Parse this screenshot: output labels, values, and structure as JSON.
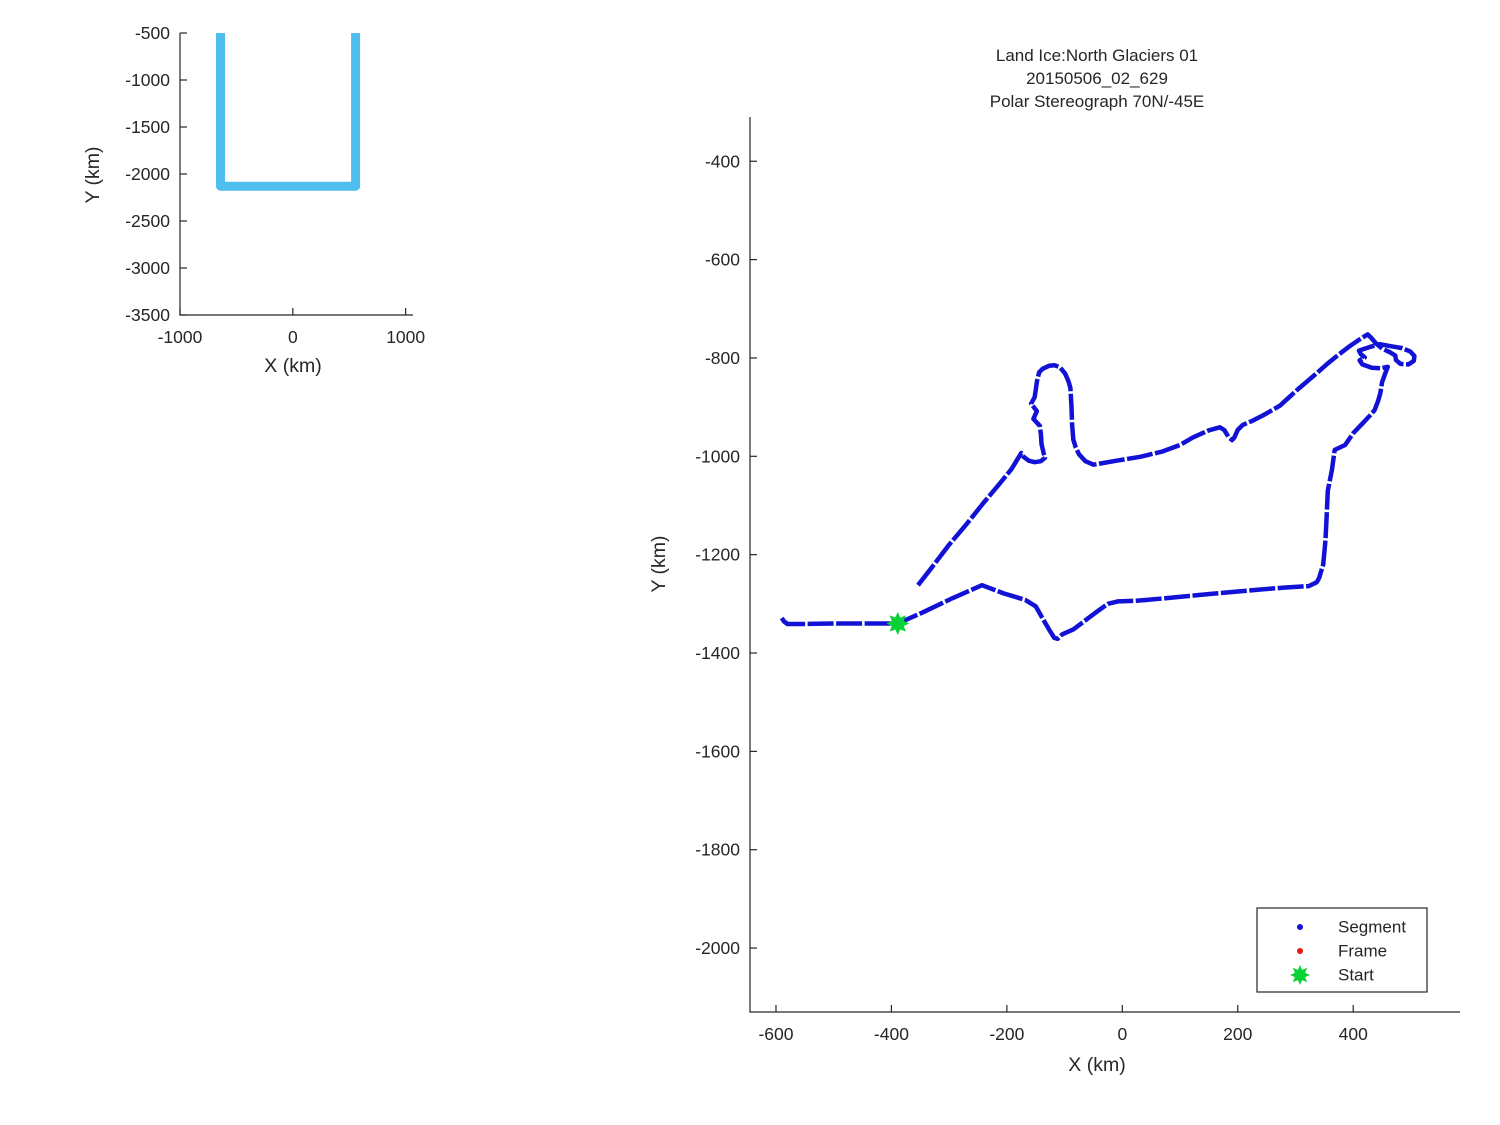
{
  "colors": {
    "background": "#ffffff",
    "axis": "#262626",
    "text": "#262626",
    "segment_blue": "#1212d6",
    "frame_red": "#e81616",
    "start_green": "#0bd234",
    "overview_cyan": "#4dbeee"
  },
  "chart_data": [
    {
      "id": "overview",
      "type": "line",
      "title": "",
      "xlabel": "X (km)",
      "ylabel": "Y (km)",
      "xlim": [
        -1000,
        1065
      ],
      "ylim": [
        -3500,
        -500
      ],
      "xticks": [
        -1000,
        0,
        1000
      ],
      "yticks": [
        -500,
        -1000,
        -1500,
        -2000,
        -2500,
        -3000,
        -3500
      ],
      "grid": false,
      "series": [
        {
          "name": "flight-track-overview",
          "color_key": "overview_cyan",
          "width": 9,
          "points": [
            [
              -641,
              -500
            ],
            [
              -641,
              -2130
            ],
            [
              556,
              -2130
            ],
            [
              556,
              -500
            ]
          ]
        }
      ]
    },
    {
      "id": "trajectory",
      "type": "line",
      "title_lines": [
        "Land Ice:North Glaciers 01",
        "20150506_02_629",
        "Polar Stereograph 70N/-45E"
      ],
      "xlabel": "X (km)",
      "ylabel": "Y (km)",
      "xlim": [
        -645,
        585
      ],
      "ylim": [
        -2130,
        -310
      ],
      "xticks": [
        -600,
        -400,
        -200,
        0,
        200,
        400
      ],
      "yticks": [
        -400,
        -600,
        -800,
        -1000,
        -1200,
        -1400,
        -1600,
        -1800,
        -2000
      ],
      "grid": false,
      "legend": {
        "position": "bottom-right",
        "items": [
          {
            "label": "Segment",
            "marker": "dot",
            "color_key": "segment_blue"
          },
          {
            "label": "Frame",
            "marker": "dot",
            "color_key": "frame_red"
          },
          {
            "label": "Start",
            "marker": "star",
            "color_key": "start_green"
          }
        ]
      },
      "start_marker": {
        "x": -389,
        "y": -1340
      },
      "series": [
        {
          "name": "segment-track",
          "color_key": "segment_blue",
          "width": 4.5,
          "dash": [
            26,
            2.5
          ],
          "points": [
            [
              -590,
              -1329
            ],
            [
              -586,
              -1336
            ],
            [
              -580,
              -1341
            ],
            [
              -555,
              -1341
            ],
            [
              -500,
              -1340
            ],
            [
              -440,
              -1340
            ],
            [
              -389,
              -1340
            ],
            [
              -345,
              -1317
            ],
            [
              -295,
              -1289
            ],
            [
              -243,
              -1262
            ],
            [
              -205,
              -1279
            ],
            [
              -168,
              -1292
            ],
            [
              -150,
              -1305
            ],
            [
              -138,
              -1330
            ],
            [
              -127,
              -1352
            ],
            [
              -118,
              -1369
            ],
            [
              -112,
              -1371
            ],
            [
              -104,
              -1362
            ],
            [
              -85,
              -1352
            ],
            [
              -60,
              -1330
            ],
            [
              -44,
              -1316
            ],
            [
              -25,
              -1300
            ],
            [
              -8,
              -1295
            ],
            [
              20,
              -1294
            ],
            [
              43,
              -1292
            ],
            [
              90,
              -1287
            ],
            [
              151,
              -1280
            ],
            [
              200,
              -1275
            ],
            [
              237,
              -1271
            ],
            [
              280,
              -1267
            ],
            [
              323,
              -1264
            ],
            [
              337,
              -1256
            ],
            [
              341,
              -1247
            ],
            [
              348,
              -1220
            ],
            [
              352,
              -1170
            ],
            [
              354,
              -1120
            ],
            [
              356,
              -1070
            ],
            [
              363,
              -1028
            ],
            [
              368,
              -987
            ],
            [
              386,
              -977
            ],
            [
              400,
              -953
            ],
            [
              417,
              -932
            ],
            [
              429,
              -917
            ],
            [
              437,
              -906
            ],
            [
              443,
              -888
            ],
            [
              447,
              -872
            ],
            [
              450,
              -849
            ],
            [
              456,
              -830
            ],
            [
              460,
              -818
            ],
            [
              448,
              -821
            ],
            [
              432,
              -820
            ],
            [
              416,
              -813
            ],
            [
              411,
              -805
            ],
            [
              420,
              -799
            ],
            [
              413,
              -792
            ],
            [
              410,
              -785
            ],
            [
              428,
              -778
            ],
            [
              446,
              -772
            ],
            [
              465,
              -776
            ],
            [
              485,
              -780
            ],
            [
              499,
              -787
            ],
            [
              506,
              -796
            ],
            [
              505,
              -806
            ],
            [
              496,
              -813
            ],
            [
              482,
              -812
            ],
            [
              474,
              -804
            ],
            [
              473,
              -795
            ],
            [
              463,
              -788
            ],
            [
              450,
              -781
            ],
            [
              440,
              -771
            ],
            [
              431,
              -759
            ],
            [
              425,
              -752
            ],
            [
              410,
              -763
            ],
            [
              394,
              -776
            ],
            [
              376,
              -792
            ],
            [
              355,
              -812
            ],
            [
              330,
              -838
            ],
            [
              302,
              -866
            ],
            [
              273,
              -897
            ],
            [
              245,
              -916
            ],
            [
              225,
              -928
            ],
            [
              209,
              -936
            ],
            [
              200,
              -946
            ],
            [
              194,
              -962
            ],
            [
              190,
              -967
            ],
            [
              184,
              -961
            ],
            [
              177,
              -947
            ],
            [
              169,
              -941
            ],
            [
              150,
              -947
            ],
            [
              122,
              -962
            ],
            [
              100,
              -977
            ],
            [
              70,
              -990
            ],
            [
              31,
              -1001
            ],
            [
              -10,
              -1009
            ],
            [
              -50,
              -1017
            ],
            [
              -64,
              -1010
            ],
            [
              -75,
              -996
            ],
            [
              -81,
              -981
            ],
            [
              -85,
              -966
            ],
            [
              -87,
              -935
            ],
            [
              -88,
              -900
            ],
            [
              -90,
              -861
            ],
            [
              -93,
              -848
            ],
            [
              -99,
              -832
            ],
            [
              -108,
              -819
            ],
            [
              -117,
              -815
            ],
            [
              -127,
              -816
            ],
            [
              -138,
              -822
            ],
            [
              -144,
              -829
            ],
            [
              -148,
              -848
            ],
            [
              -150,
              -866
            ],
            [
              -152,
              -880
            ],
            [
              -158,
              -893
            ],
            [
              -148,
              -908
            ],
            [
              -154,
              -924
            ],
            [
              -143,
              -938
            ],
            [
              -141,
              -955
            ],
            [
              -140,
              -975
            ],
            [
              -136,
              -995
            ],
            [
              -134,
              -1003
            ],
            [
              -141,
              -1010
            ],
            [
              -152,
              -1012
            ],
            [
              -162,
              -1009
            ],
            [
              -171,
              -1001
            ],
            [
              -175,
              -993
            ],
            [
              -192,
              -1026
            ],
            [
              -213,
              -1056
            ],
            [
              -240,
              -1094
            ],
            [
              -270,
              -1138
            ],
            [
              -300,
              -1180
            ],
            [
              -330,
              -1226
            ],
            [
              -354,
              -1262
            ]
          ]
        }
      ]
    }
  ]
}
